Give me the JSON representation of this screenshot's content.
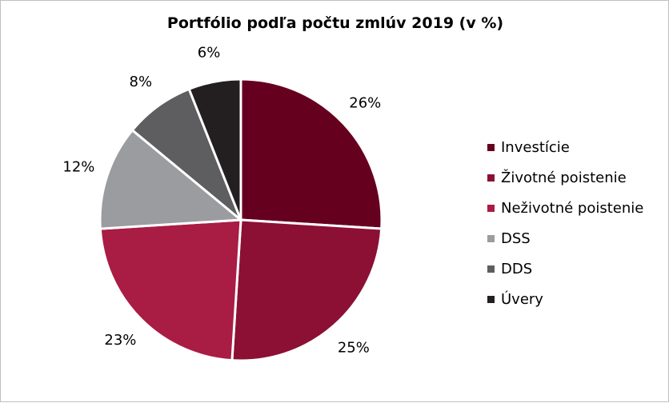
{
  "chart_data": {
    "type": "pie",
    "title": "Portfólio podľa počtu zmlúv 2019 (v %)",
    "legend_position": "right",
    "slices": [
      {
        "label": "Investície",
        "value": 26,
        "value_label": "26%",
        "color": "#66001f"
      },
      {
        "label": "Životné poistenie",
        "value": 25,
        "value_label": "25%",
        "color": "#8c1034"
      },
      {
        "label": "Neživotné poistenie",
        "value": 23,
        "value_label": "23%",
        "color": "#a91c44"
      },
      {
        "label": "DSS",
        "value": 12,
        "value_label": "12%",
        "color": "#9b9c9f"
      },
      {
        "label": "DDS",
        "value": 8,
        "value_label": "8%",
        "color": "#5e5e60"
      },
      {
        "label": "Úvery",
        "value": 6,
        "value_label": "6%",
        "color": "#231f20"
      }
    ]
  }
}
